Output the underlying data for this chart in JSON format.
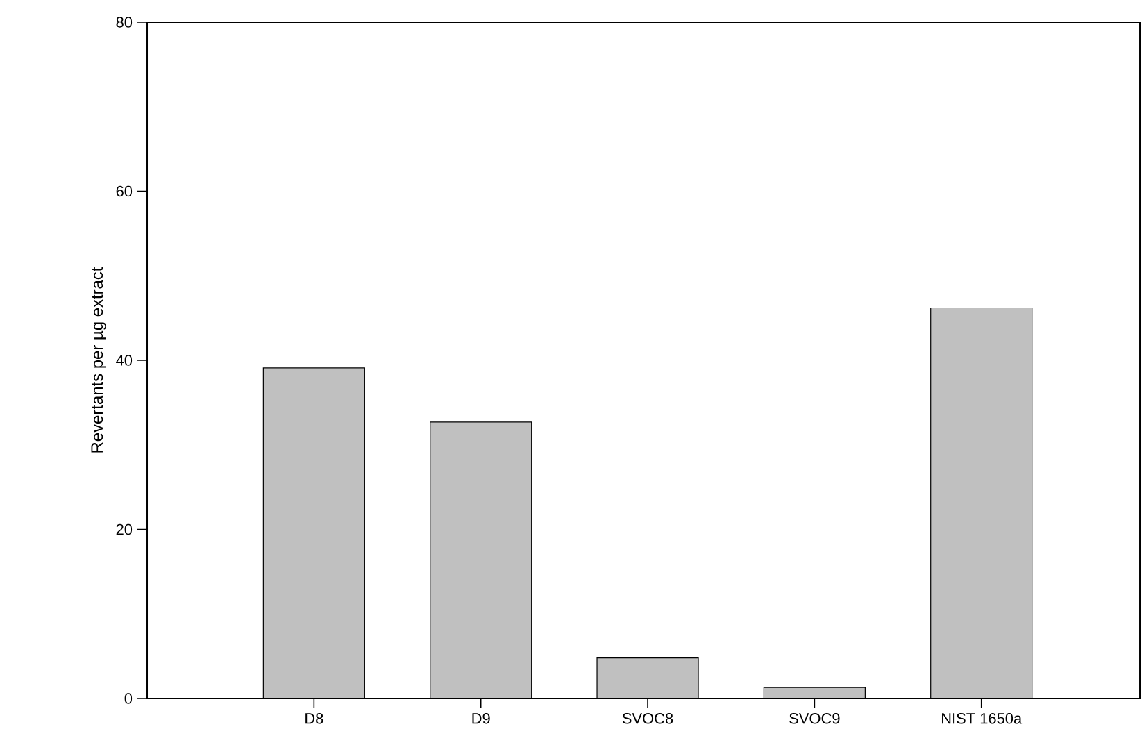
{
  "chart_data": {
    "type": "bar",
    "ylabel": "Revertants per µg extract",
    "categories": [
      "D8",
      "D9",
      "SVOC8",
      "SVOC9",
      "NIST 1650a"
    ],
    "values": [
      39.1,
      32.7,
      4.8,
      1.3,
      46.2
    ],
    "color": "#c0c0c0",
    "ylim": [
      0,
      80
    ],
    "yticks": [
      0,
      20,
      40,
      60,
      80
    ],
    "grid": false
  }
}
